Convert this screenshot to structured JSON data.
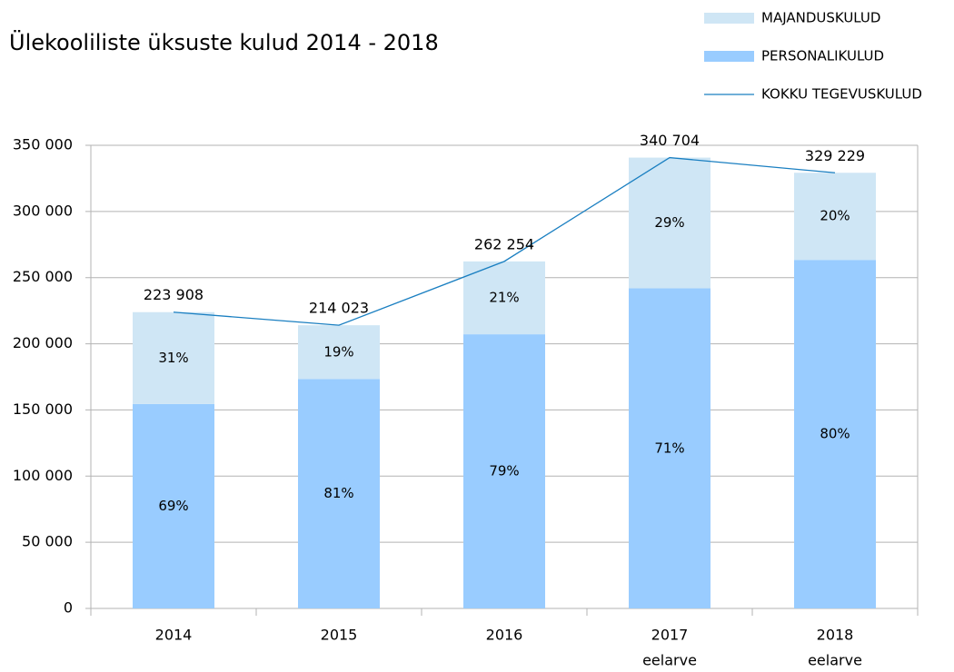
{
  "chart_data": {
    "type": "stacked-bar-line",
    "title": "Ülekooliliste üksuste kulud 2014 - 2018",
    "categories": [
      [
        "2014"
      ],
      [
        "2015"
      ],
      [
        "2016"
      ],
      [
        "2017",
        "eelarve"
      ],
      [
        "2018",
        "eelarve"
      ]
    ],
    "series": [
      {
        "name": "PERSONALIKULUD",
        "color": "#99ccff",
        "kind": "bar",
        "values": [
          154497,
          173359,
          207181,
          241900,
          263383
        ],
        "labels": [
          "69%",
          "81%",
          "79%",
          "71%",
          "80%"
        ]
      },
      {
        "name": "MAJANDUSKULUD",
        "color": "#cfe6f5",
        "kind": "bar",
        "values": [
          69411,
          40664,
          55073,
          98804,
          65846
        ],
        "labels": [
          "31%",
          "19%",
          "21%",
          "29%",
          "20%"
        ]
      },
      {
        "name": "KOKKU TEGEVUSKULUD",
        "color": "#1a7fc1",
        "kind": "line",
        "values": [
          223908,
          214023,
          262254,
          340704,
          329229
        ],
        "value_labels": [
          "223 908",
          "214 023",
          "262 254",
          "340 704",
          "329 229"
        ]
      }
    ],
    "legend_order": [
      1,
      0,
      2
    ],
    "ylim": [
      0,
      350000
    ],
    "yticks": [
      {
        "value": 0,
        "label": "0"
      },
      {
        "value": 50000,
        "label": "50 000"
      },
      {
        "value": 100000,
        "label": "100 000"
      },
      {
        "value": 150000,
        "label": "150 000"
      },
      {
        "value": 200000,
        "label": "200 000"
      },
      {
        "value": 250000,
        "label": "250 000"
      },
      {
        "value": 300000,
        "label": "300 000"
      },
      {
        "value": 350000,
        "label": "350 000"
      }
    ],
    "grid": true
  }
}
